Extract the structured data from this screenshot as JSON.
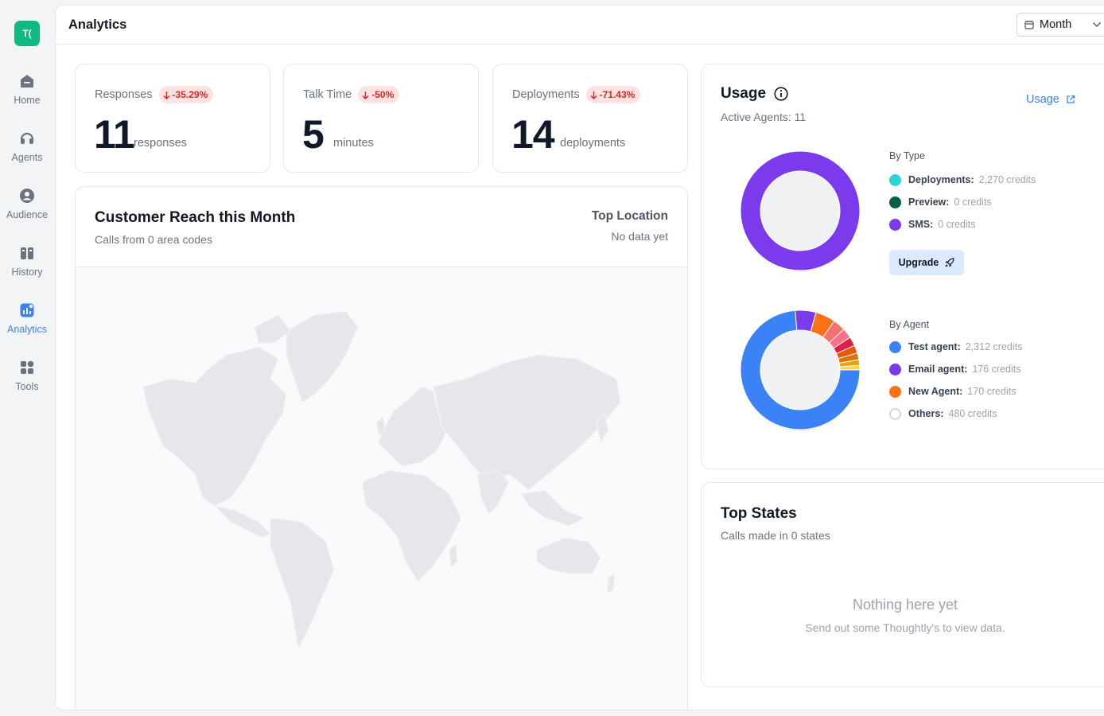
{
  "sidebar": {
    "logo_text": "T(",
    "items": [
      {
        "label": "Home",
        "icon": "home-icon"
      },
      {
        "label": "Agents",
        "icon": "headset-icon"
      },
      {
        "label": "Audience",
        "icon": "user-circle-icon"
      },
      {
        "label": "History",
        "icon": "history-icon"
      },
      {
        "label": "Analytics",
        "icon": "analytics-icon",
        "active": true
      },
      {
        "label": "Tools",
        "icon": "tools-icon"
      }
    ]
  },
  "header": {
    "title": "Analytics",
    "period": "Month"
  },
  "stats": [
    {
      "title": "Responses",
      "change": "-35.29%",
      "value": "11",
      "unit": "responses"
    },
    {
      "title": "Talk Time",
      "change": "-50%",
      "value": "5",
      "unit": "minutes"
    },
    {
      "title": "Deployments",
      "change": "-71.43%",
      "value": "14",
      "unit": "deployments"
    }
  ],
  "reach": {
    "title": "Customer Reach this Month",
    "subtitle": "Calls from 0 area codes",
    "top_location_title": "Top Location",
    "top_location_value": "No data yet"
  },
  "usage": {
    "title": "Usage",
    "subtitle": "Active Agents: 11",
    "link": "Usage",
    "by_type_title": "By Type",
    "by_type": [
      {
        "name": "Deployments:",
        "value": "2,270 credits",
        "color": "#2dd4d4",
        "credits": 2270
      },
      {
        "name": "Preview:",
        "value": "0 credits",
        "color": "#065f46",
        "credits": 0
      },
      {
        "name": "SMS:",
        "value": "0 credits",
        "color": "#7c3aed",
        "credits": 0
      }
    ],
    "upgrade_label": "Upgrade",
    "by_agent_title": "By Agent",
    "by_agent": [
      {
        "name": "Test agent:",
        "value": "2,312 credits",
        "color": "#3b82f6",
        "credits": 2312
      },
      {
        "name": "Email agent:",
        "value": "176 credits",
        "color": "#7c3aed",
        "credits": 176
      },
      {
        "name": "New Agent:",
        "value": "170 credits",
        "color": "#f97316",
        "credits": 170
      },
      {
        "name": "Others:",
        "value": "480 credits",
        "color": "#ffffff",
        "credits": 480
      }
    ]
  },
  "top_states": {
    "title": "Top States",
    "subtitle": "Calls made in 0 states",
    "empty_title": "Nothing here yet",
    "empty_subtitle": "Send out some Thoughtly's to view data."
  }
}
